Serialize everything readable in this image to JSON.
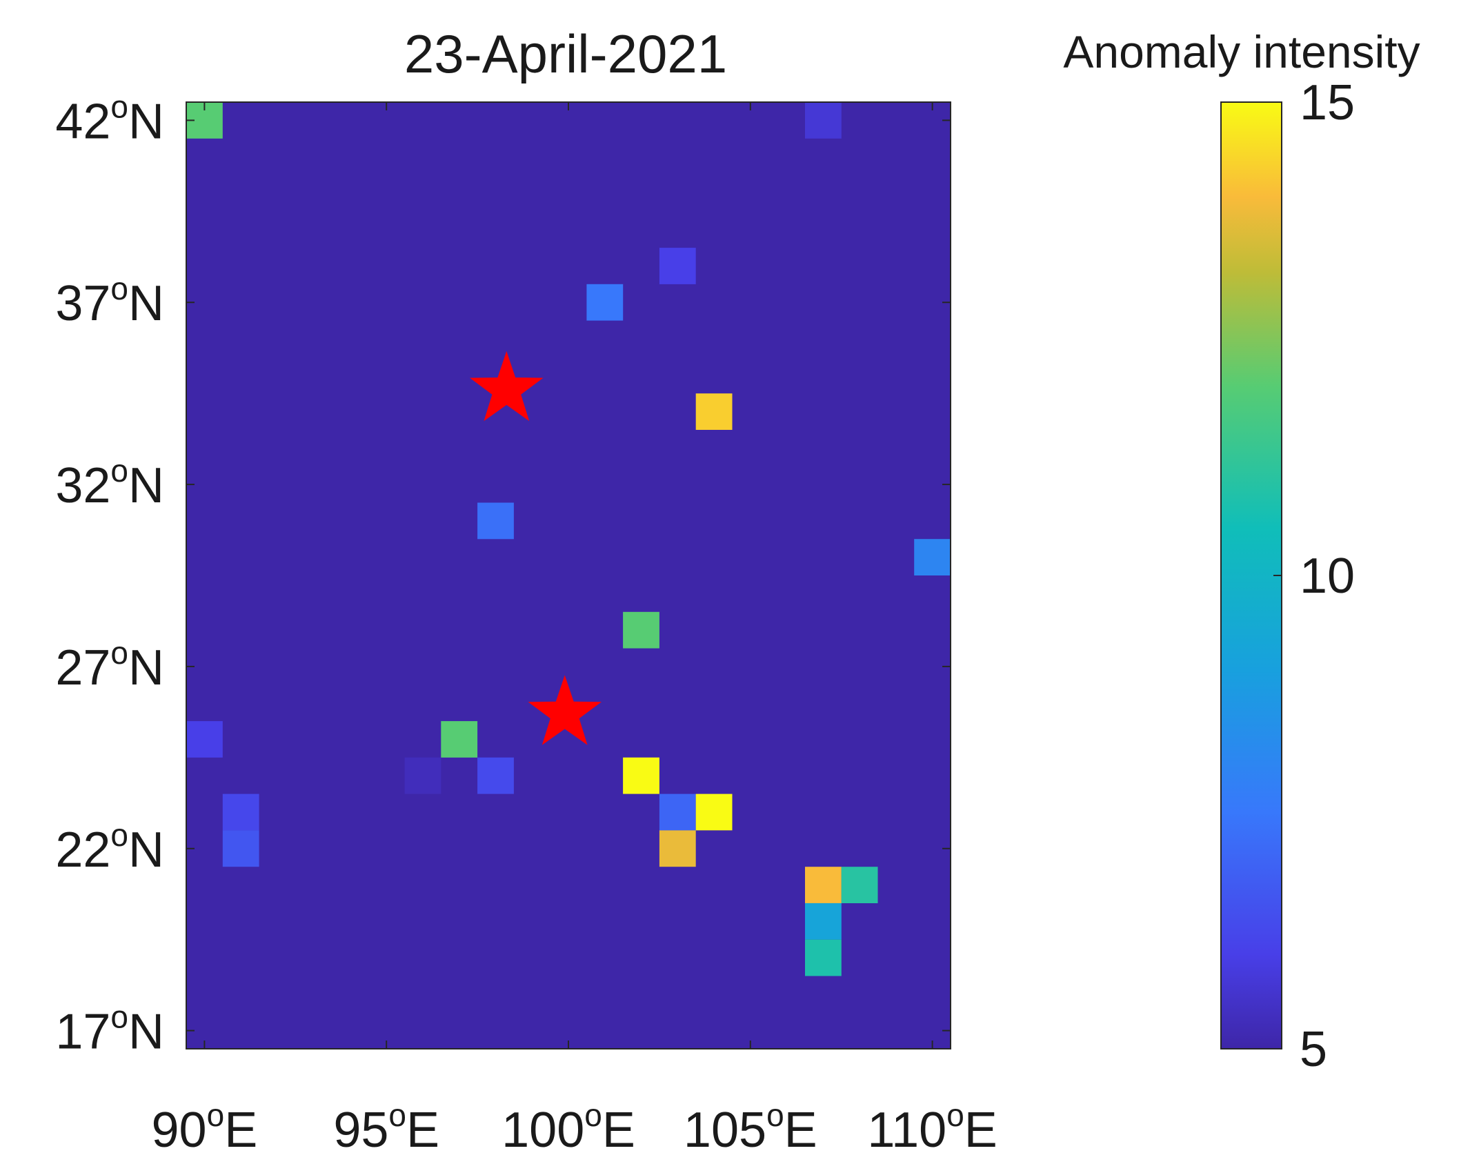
{
  "chart_data": {
    "type": "heatmap",
    "title": "23-April-2021",
    "xlabel": "",
    "ylabel": "",
    "xlim": [
      89.5,
      110.5
    ],
    "ylim": [
      16.5,
      42.5
    ],
    "x_ticks": [
      {
        "value": 90,
        "num": "90",
        "sup": "o",
        "suffix": "E"
      },
      {
        "value": 95,
        "num": "95",
        "sup": "o",
        "suffix": "E"
      },
      {
        "value": 100,
        "num": "100",
        "sup": "o",
        "suffix": "E"
      },
      {
        "value": 105,
        "num": "105",
        "sup": "o",
        "suffix": "E"
      },
      {
        "value": 110,
        "num": "110",
        "sup": "o",
        "suffix": "E"
      }
    ],
    "y_ticks": [
      {
        "value": 42,
        "num": "42",
        "sup": "o",
        "suffix": "N"
      },
      {
        "value": 37,
        "num": "37",
        "sup": "o",
        "suffix": "N"
      },
      {
        "value": 32,
        "num": "32",
        "sup": "o",
        "suffix": "N"
      },
      {
        "value": 27,
        "num": "27",
        "sup": "o",
        "suffix": "N"
      },
      {
        "value": 22,
        "num": "22",
        "sup": "o",
        "suffix": "N"
      },
      {
        "value": 17,
        "num": "17",
        "sup": "o",
        "suffix": "N"
      }
    ],
    "cell_size_deg": 1,
    "background_value": 5,
    "cells": [
      {
        "lon": 90,
        "lat": 42,
        "value": 12
      },
      {
        "lon": 107,
        "lat": 42,
        "value": 5.7
      },
      {
        "lon": 103,
        "lat": 38,
        "value": 6
      },
      {
        "lon": 101,
        "lat": 37,
        "value": 7.5
      },
      {
        "lon": 104,
        "lat": 34,
        "value": 14.3
      },
      {
        "lon": 98,
        "lat": 31,
        "value": 7.3
      },
      {
        "lon": 110,
        "lat": 30,
        "value": 8
      },
      {
        "lon": 102,
        "lat": 28,
        "value": 12
      },
      {
        "lon": 90,
        "lat": 25,
        "value": 6
      },
      {
        "lon": 97,
        "lat": 25,
        "value": 12
      },
      {
        "lon": 96,
        "lat": 24,
        "value": 5.3
      },
      {
        "lon": 98,
        "lat": 24,
        "value": 6.3
      },
      {
        "lon": 102,
        "lat": 24,
        "value": 15
      },
      {
        "lon": 91,
        "lat": 23,
        "value": 6.2
      },
      {
        "lon": 103,
        "lat": 23,
        "value": 7
      },
      {
        "lon": 104,
        "lat": 23,
        "value": 15
      },
      {
        "lon": 91,
        "lat": 22,
        "value": 6.6
      },
      {
        "lon": 103,
        "lat": 22,
        "value": 13.8
      },
      {
        "lon": 107,
        "lat": 21,
        "value": 14
      },
      {
        "lon": 108,
        "lat": 21,
        "value": 11
      },
      {
        "lon": 107,
        "lat": 20,
        "value": 9.2
      },
      {
        "lon": 107,
        "lat": 19,
        "value": 10.8
      }
    ],
    "markers": [
      {
        "lon": 98.3,
        "lat": 34.6,
        "shape": "star",
        "color": "#ff0000"
      },
      {
        "lon": 99.9,
        "lat": 25.7,
        "shape": "star",
        "color": "#ff0000"
      }
    ],
    "colorbar": {
      "label": "Anomaly intensity",
      "min": 5,
      "max": 15,
      "ticks": [
        {
          "value": 15,
          "label": "15"
        },
        {
          "value": 10,
          "label": "10"
        },
        {
          "value": 5,
          "label": "5"
        }
      ],
      "colormap": "parula"
    },
    "grid": false
  }
}
